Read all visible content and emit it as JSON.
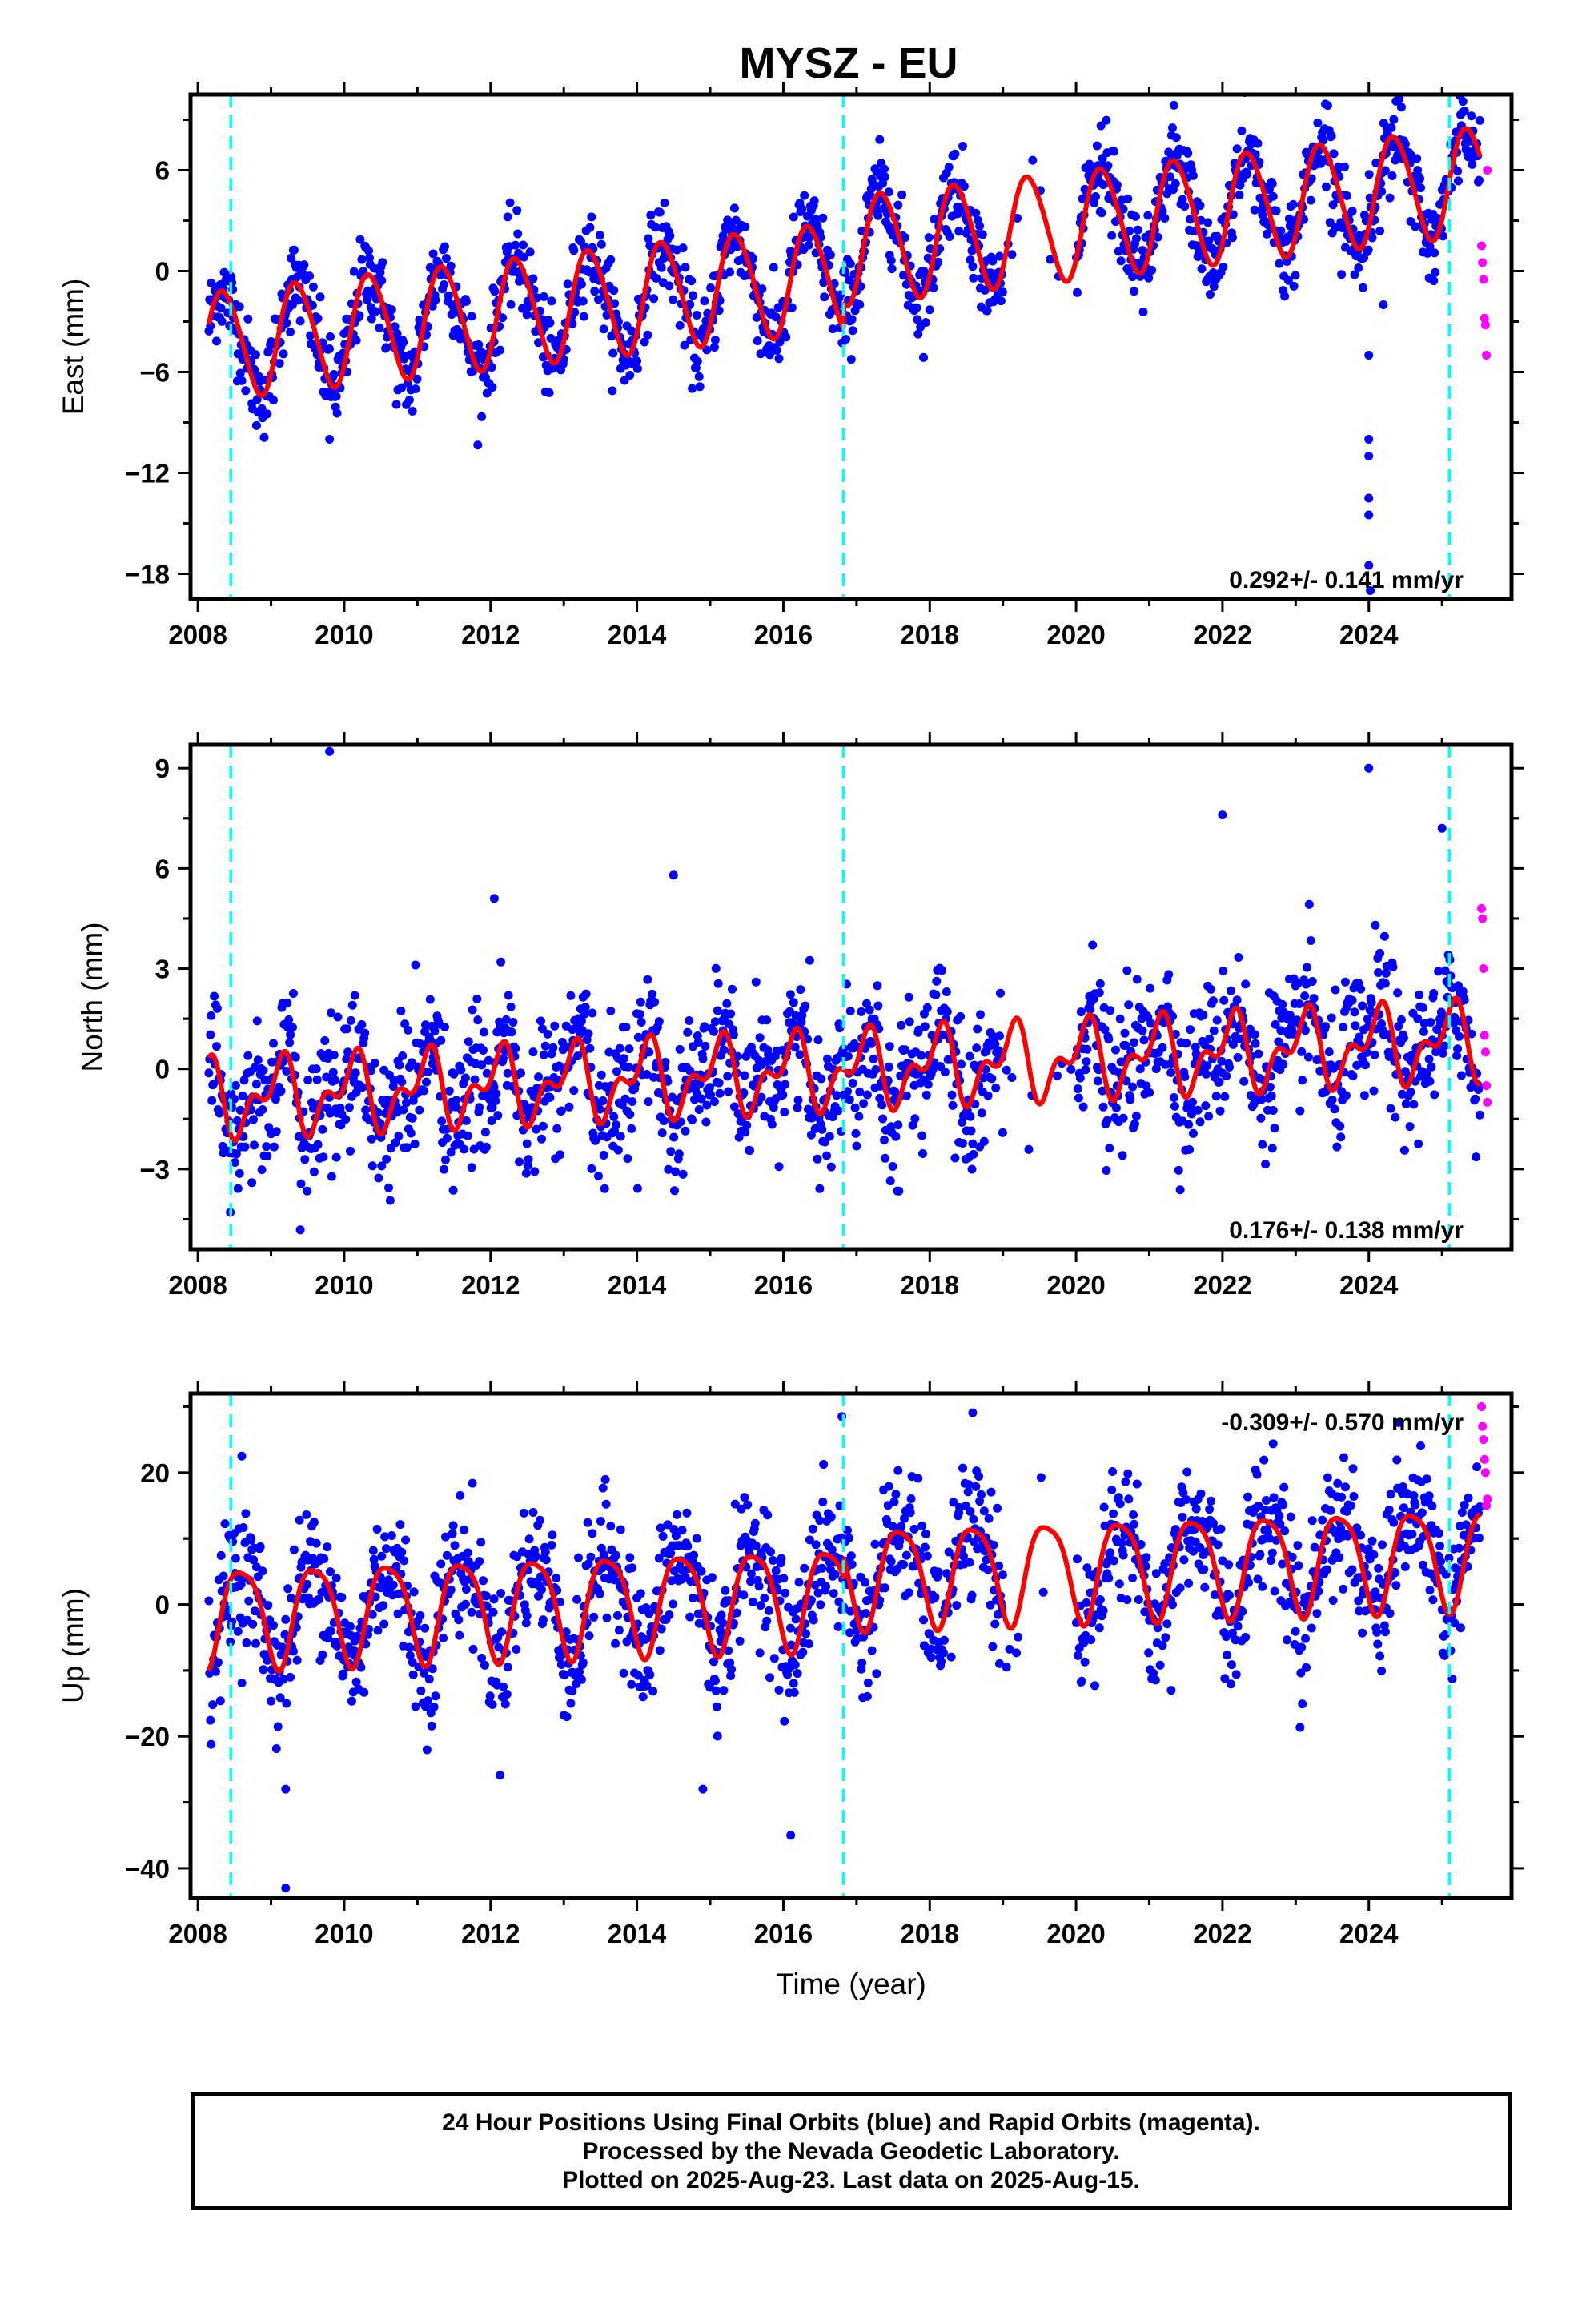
{
  "title": "MYSZ - EU",
  "footer": {
    "line1": "24 Hour Positions Using Final Orbits (blue) and Rapid Orbits (magenta).",
    "line2": "Processed by the Nevada Geodetic Laboratory.",
    "line3": "Plotted on 2025-Aug-23. Last data on 2025-Aug-15."
  },
  "colors": {
    "final": "#0000ff",
    "rapid": "#ff00ff",
    "model": "#ff0000",
    "steps": "#00ffff"
  },
  "chart_data": [
    {
      "type": "scatter",
      "ylabel": "East (mm)",
      "xlabel": "",
      "xlim": [
        2007.9,
        2025.95
      ],
      "ylim": [
        -19.5,
        10.5
      ],
      "xticks": [
        2008,
        2010,
        2012,
        2014,
        2016,
        2018,
        2020,
        2022,
        2024
      ],
      "yticks": [
        -18,
        -12,
        -6,
        0,
        6
      ],
      "ytick_labels": [
        "−18",
        "−12",
        "−6",
        "0",
        "6"
      ],
      "rate": "0.292+/- 0.141 mm/yr",
      "rate_position": "bottom-right",
      "steps": [
        2008.45,
        2016.82,
        2025.1
      ],
      "final_range": [
        2008.15,
        2025.52
      ],
      "rapid_range": [
        2025.54,
        2025.62
      ],
      "gap": [
        2019.0,
        2020.0
      ],
      "model": {
        "offset": -4.4,
        "trend": 0.48,
        "amp": 3.2,
        "phase": 0.1,
        "amp2": 0.3,
        "steps": [
          {
            "t": 2016.82,
            "dy": 1.5
          }
        ]
      },
      "scatter": 1.3,
      "outliers": [
        [
          2009.8,
          -10.0
        ],
        [
          2024.0,
          -10.0
        ],
        [
          2024.0,
          -11.0
        ],
        [
          2024.0,
          -13.5
        ],
        [
          2024.0,
          -14.5
        ],
        [
          2024.0,
          -17.5
        ],
        [
          2024.02,
          -19.0
        ],
        [
          2024.0,
          -5.0
        ],
        [
          2024.2,
          -2.0
        ]
      ],
      "rapid_values": [
        1.5,
        0.5,
        -0.5,
        -2.8,
        -3.2,
        -5.0,
        6.0
      ]
    },
    {
      "type": "scatter",
      "ylabel": "North (mm)",
      "xlabel": "",
      "xlim": [
        2007.9,
        2025.95
      ],
      "ylim": [
        -5.4,
        9.7
      ],
      "xticks": [
        2008,
        2010,
        2012,
        2014,
        2016,
        2018,
        2020,
        2022,
        2024
      ],
      "yticks": [
        -3,
        0,
        3,
        6,
        9
      ],
      "ytick_labels": [
        "−3",
        "0",
        "3",
        "6",
        "9"
      ],
      "rate": "0.176+/- 0.138 mm/yr",
      "rate_position": "bottom-right",
      "steps": [
        2008.45,
        2016.82,
        2025.1
      ],
      "final_range": [
        2008.15,
        2025.52
      ],
      "rapid_range": [
        2025.54,
        2025.62
      ],
      "gap": [
        2019.0,
        2020.0
      ],
      "model": {
        "offset": -0.9,
        "trend": 0.1,
        "amp": 0.9,
        "phase": 0.85,
        "amp2": 0.6,
        "steps": []
      },
      "scatter": 1.05,
      "outliers": [
        [
          2009.8,
          9.5
        ],
        [
          2024.0,
          9.0
        ],
        [
          2022.0,
          7.6
        ],
        [
          2025.0,
          7.2
        ],
        [
          2014.5,
          5.8
        ],
        [
          2012.05,
          5.1
        ]
      ],
      "rapid_values": [
        4.8,
        4.5,
        3.0,
        1.0,
        0.5,
        -0.5,
        -1.0
      ]
    },
    {
      "type": "scatter",
      "ylabel": "Up (mm)",
      "xlabel": "Time (year)",
      "xlim": [
        2007.9,
        2025.95
      ],
      "ylim": [
        -44.5,
        32
      ],
      "xticks": [
        2008,
        2010,
        2012,
        2014,
        2016,
        2018,
        2020,
        2022,
        2024
      ],
      "yticks": [
        -40,
        -20,
        0,
        20
      ],
      "ytick_labels": [
        "−40",
        "−20",
        "0",
        "20"
      ],
      "rate": "-0.309+/- 0.570 mm/yr",
      "rate_position": "top-right",
      "steps": [
        2008.45,
        2016.82,
        2025.1
      ],
      "final_range": [
        2008.15,
        2025.52
      ],
      "rapid_range": [
        2025.54,
        2025.62
      ],
      "gap": [
        2019.0,
        2020.0
      ],
      "model": {
        "offset": -1.5,
        "trend": 0.35,
        "amp": 7.5,
        "phase": 0.35,
        "amp2": 1.5,
        "steps": [
          {
            "t": 2016.82,
            "dy": 3.0
          }
        ]
      },
      "scatter": 5.0,
      "outliers": [
        [
          2009.2,
          -43.0
        ],
        [
          2016.1,
          -35.0
        ],
        [
          2016.8,
          28.5
        ],
        [
          2009.2,
          -28.0
        ],
        [
          2008.6,
          22.5
        ],
        [
          2014.9,
          -28.0
        ],
        [
          2021.3,
          -13.0
        ]
      ],
      "rapid_values": [
        30.0,
        27.0,
        25.0,
        22.0,
        20.0,
        15.0,
        16.0
      ]
    }
  ]
}
